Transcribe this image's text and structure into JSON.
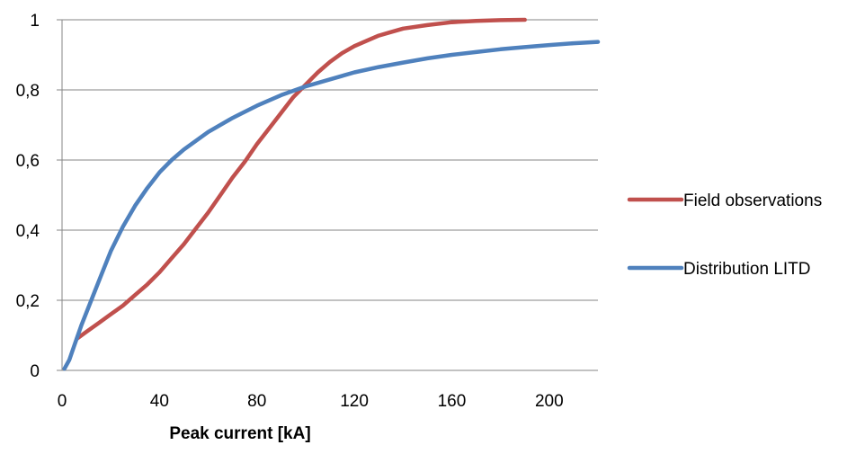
{
  "chart_data": {
    "type": "line",
    "title": "",
    "xlabel": "Peak current [kA]",
    "ylabel": "",
    "xlim": [
      0,
      220
    ],
    "ylim": [
      0,
      1
    ],
    "x_ticks": [
      "0",
      "40",
      "80",
      "120",
      "160",
      "200"
    ],
    "y_ticks": [
      "0",
      "0,2",
      "0,4",
      "0,6",
      "0,8",
      "1"
    ],
    "grid": "horizontal",
    "legend_position": "right",
    "series": [
      {
        "name": "Field observations",
        "color": "#c0504d",
        "x": [
          6,
          10,
          15,
          20,
          25,
          30,
          35,
          40,
          45,
          50,
          55,
          60,
          65,
          70,
          75,
          80,
          85,
          90,
          95,
          100,
          105,
          110,
          115,
          120,
          125,
          130,
          135,
          140,
          150,
          160,
          170,
          180,
          190
        ],
        "y": [
          0.09,
          0.11,
          0.135,
          0.16,
          0.185,
          0.215,
          0.245,
          0.28,
          0.32,
          0.36,
          0.405,
          0.45,
          0.5,
          0.55,
          0.595,
          0.645,
          0.69,
          0.735,
          0.78,
          0.815,
          0.85,
          0.88,
          0.905,
          0.925,
          0.94,
          0.955,
          0.965,
          0.975,
          0.985,
          0.993,
          0.997,
          0.999,
          1.0
        ]
      },
      {
        "name": "Distribution LITD",
        "color": "#4f81bd",
        "x": [
          1,
          3,
          5,
          8,
          12,
          16,
          20,
          25,
          30,
          35,
          40,
          45,
          50,
          60,
          70,
          80,
          90,
          100,
          110,
          120,
          130,
          140,
          150,
          160,
          170,
          180,
          190,
          200,
          210,
          220
        ],
        "y": [
          0.005,
          0.03,
          0.07,
          0.13,
          0.2,
          0.27,
          0.34,
          0.41,
          0.47,
          0.52,
          0.565,
          0.6,
          0.63,
          0.68,
          0.72,
          0.755,
          0.785,
          0.81,
          0.83,
          0.85,
          0.865,
          0.878,
          0.89,
          0.9,
          0.908,
          0.916,
          0.922,
          0.928,
          0.933,
          0.937
        ]
      }
    ]
  }
}
